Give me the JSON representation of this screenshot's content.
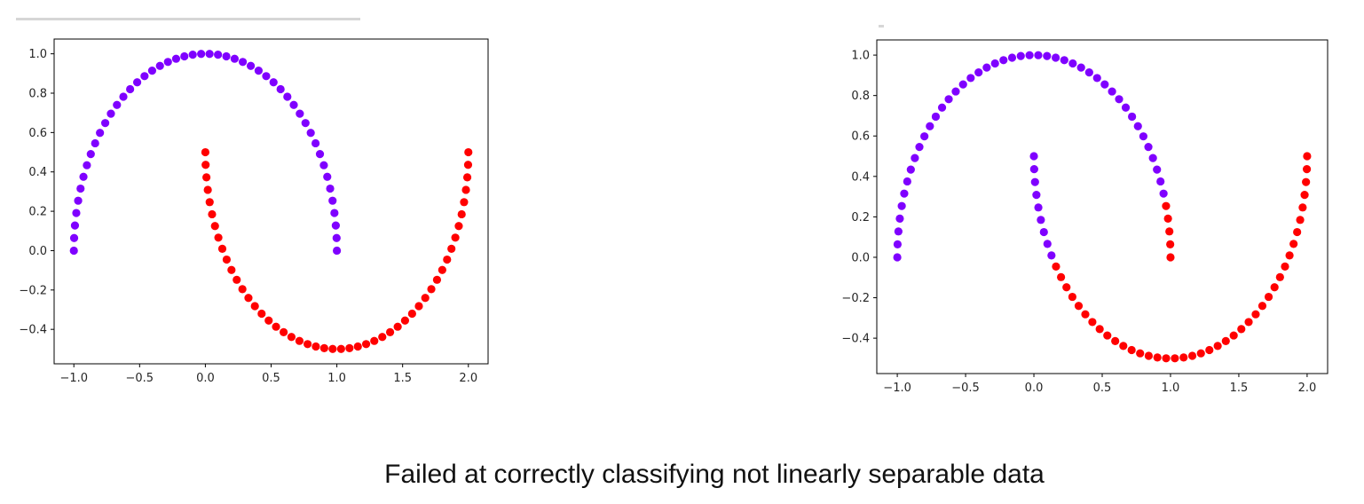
{
  "colors": {
    "class_a": "#7f00ff",
    "class_b": "#ff0000",
    "axis": "#000000",
    "text": "#262626"
  },
  "chart_data": [
    {
      "type": "scatter",
      "title": "",
      "xlabel": "",
      "ylabel": "",
      "xlim": [
        -1.15,
        2.15
      ],
      "ylim": [
        -0.575,
        1.075
      ],
      "xticks": [
        -1.0,
        -0.5,
        0.0,
        0.5,
        1.0,
        1.5,
        2.0
      ],
      "xtick_labels": [
        "−1.0",
        "−0.5",
        "0.0",
        "0.5",
        "1.0",
        "1.5",
        "2.0"
      ],
      "yticks": [
        -0.4,
        -0.2,
        0.0,
        0.2,
        0.4,
        0.6,
        0.8,
        1.0
      ],
      "ytick_labels": [
        "−0.4",
        "−0.2",
        "0.0",
        "0.2",
        "0.4",
        "0.6",
        "0.8",
        "1.0"
      ],
      "grid": false,
      "moons": {
        "samples_per_moon": 50,
        "upper_color": "class_a",
        "lower_color": "class_b",
        "misclassified_upper_tail": 0,
        "misclassified_lower_head": 0
      }
    },
    {
      "type": "scatter",
      "title": "",
      "xlabel": "",
      "ylabel": "",
      "xlim": [
        -1.15,
        2.15
      ],
      "ylim": [
        -0.575,
        1.075
      ],
      "xticks": [
        -1.0,
        -0.5,
        0.0,
        0.5,
        1.0,
        1.5,
        2.0
      ],
      "xtick_labels": [
        "−1.0",
        "−0.5",
        "0.0",
        "0.5",
        "1.0",
        "1.5",
        "2.0"
      ],
      "yticks": [
        -0.4,
        -0.2,
        0.0,
        0.2,
        0.4,
        0.6,
        0.8,
        1.0
      ],
      "ytick_labels": [
        "−0.4",
        "−0.2",
        "0.0",
        "0.2",
        "0.4",
        "0.6",
        "0.8",
        "1.0"
      ],
      "grid": false,
      "moons": {
        "samples_per_moon": 50,
        "upper_color": "class_a",
        "lower_color": "class_b",
        "misclassified_upper_tail": 5,
        "misclassified_lower_head": 9
      }
    }
  ],
  "caption": "Failed at correctly classifying not linearly separable data"
}
